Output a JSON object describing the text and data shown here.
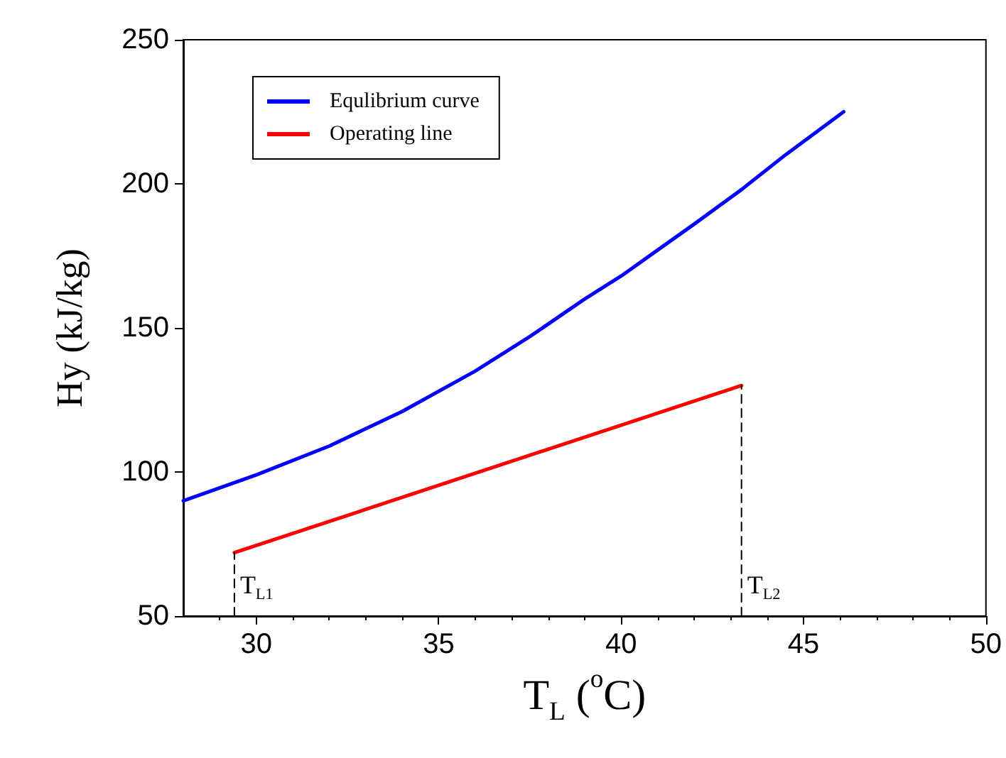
{
  "chart_data": {
    "type": "line",
    "xlabel": "T$_{L}$ ($^{o}$C)",
    "ylabel": "Hy (kJ/kg)",
    "xlim": [
      28,
      50
    ],
    "xticks": [
      30,
      35,
      40,
      45,
      50
    ],
    "ylim": [
      50,
      250
    ],
    "yticks": [
      50,
      100,
      150,
      200,
      250
    ],
    "grid": false,
    "legend": "top left",
    "marker": "none",
    "line_style": "solid",
    "series": [
      {
        "name": "Equlibrium curve",
        "color": "#0000ff",
        "x": [
          28,
          30,
          32,
          34,
          36,
          37.5,
          39,
          40,
          41,
          42,
          43.3,
          44.5,
          46.1
        ],
        "values": [
          90,
          99,
          109,
          121,
          135,
          147,
          160,
          168,
          177,
          186,
          198,
          210,
          225
        ]
      },
      {
        "name": "Operating line",
        "color": "#ff0000",
        "x": [
          29.4,
          43.3
        ],
        "values": [
          72,
          130
        ]
      },
      {
        "color": "#000000",
        "line_style": "dashed",
        "x": [
          29.4,
          29.4
        ],
        "values": [
          50,
          72
        ]
      },
      {
        "color": "#000000",
        "line_style": "dashed",
        "x": [
          43.3,
          43.3
        ],
        "values": [
          50,
          130
        ]
      }
    ],
    "annotations": [
      "T$_{L1}$",
      "T$_{L2}$"
    ]
  }
}
